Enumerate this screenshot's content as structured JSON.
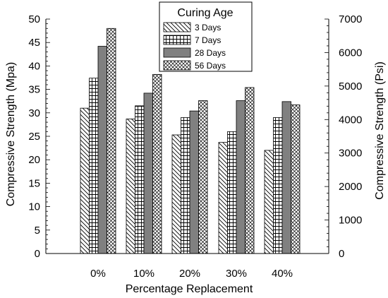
{
  "chart_data": {
    "type": "bar",
    "title": "",
    "xlabel": "Percentage Replacement",
    "ylabel": "Compressive Strength (Mpa)",
    "y2label": "Compressive Strength (Psi)",
    "categories": [
      "0%",
      "10%",
      "20%",
      "30%",
      "40%"
    ],
    "ylim": [
      0,
      50
    ],
    "y2lim": [
      0,
      7000
    ],
    "yticks": [
      0,
      5,
      10,
      15,
      20,
      25,
      30,
      35,
      40,
      45,
      50
    ],
    "y2ticks": [
      0,
      1000,
      2000,
      3000,
      4000,
      5000,
      6000,
      7000
    ],
    "legend_title": "Curing Age",
    "legend_position": "top-center",
    "grid": false,
    "series": [
      {
        "name": "3 Days",
        "pattern": "diagonal",
        "values": [
          31.0,
          28.7,
          25.3,
          23.7,
          22.0
        ]
      },
      {
        "name": "7 Days",
        "pattern": "grid",
        "values": [
          37.4,
          31.5,
          29.0,
          26.0,
          29.0
        ]
      },
      {
        "name": "28 Days",
        "pattern": "solid",
        "color": "#808080",
        "values": [
          44.2,
          34.2,
          30.4,
          32.6,
          32.4
        ]
      },
      {
        "name": "56 Days",
        "pattern": "crosshatch",
        "values": [
          48.0,
          38.2,
          32.6,
          35.4,
          31.7
        ]
      }
    ]
  }
}
